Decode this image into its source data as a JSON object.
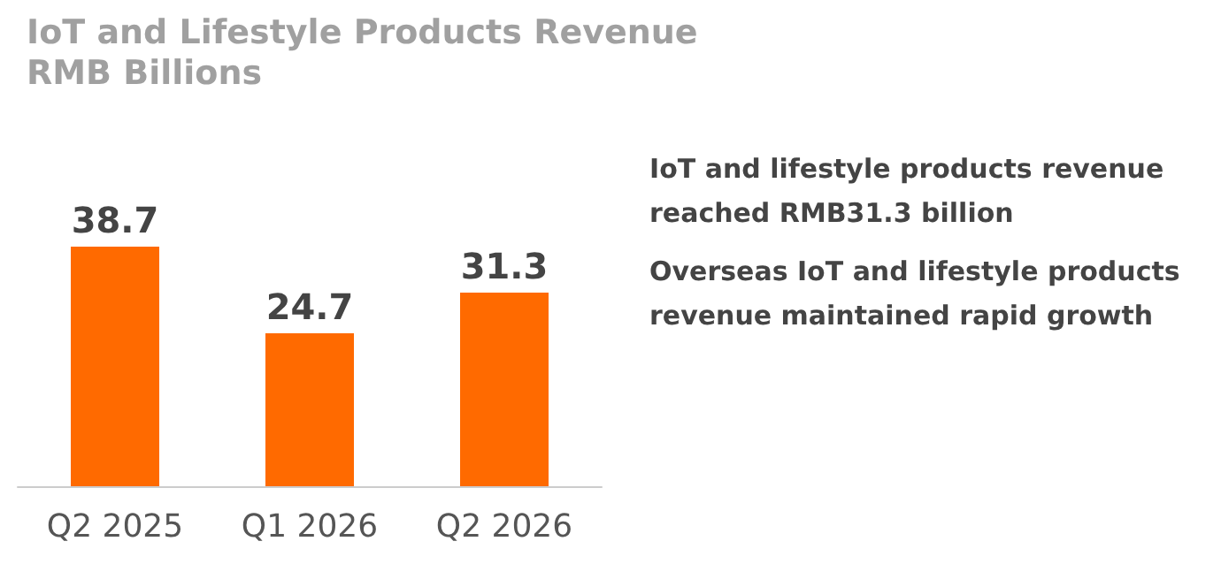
{
  "chart_data": {
    "type": "bar",
    "title": "IoT and Lifestyle Products Revenue",
    "subtitle": "RMB Billions",
    "categories": [
      "Q2 2025",
      "Q1 2026",
      "Q2 2026"
    ],
    "values": [
      38.7,
      24.7,
      31.3
    ],
    "color": "#ff6a00",
    "data_labels": true,
    "annotations": [
      "IoT and lifestyle products revenue reached RMB31.3 billion",
      "Overseas IoT and lifestyle products revenue maintained rapid growth"
    ]
  }
}
